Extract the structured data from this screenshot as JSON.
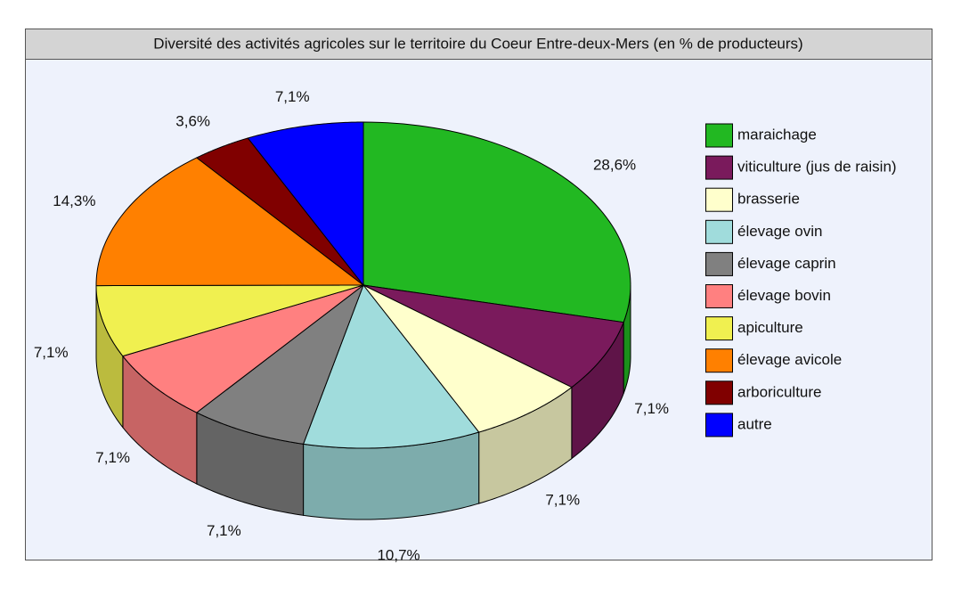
{
  "chart_data": {
    "type": "pie3d",
    "title": "Diversité des activités agricoles sur le territoire du Coeur Entre-deux-Mers (en % de producteurs)",
    "categories": [
      "maraichage",
      "viticulture (jus de raisin)",
      "brasserie",
      "élevage ovin",
      "élevage caprin",
      "élevage bovin",
      "apiculture",
      "élevage avicole",
      "arboriculture",
      "autre"
    ],
    "values": [
      28.6,
      7.1,
      7.1,
      10.7,
      7.1,
      7.1,
      7.1,
      14.3,
      3.6,
      7.1
    ],
    "value_labels": [
      "28,6%",
      "7,1%",
      "7,1%",
      "10,7%",
      "7,1%",
      "7,1%",
      "7,1%",
      "14,3%",
      "3,6%",
      "7,1%"
    ],
    "colors": [
      "#22b822",
      "#7a1a5c",
      "#ffffcc",
      "#a0dcdc",
      "#808080",
      "#ff8080",
      "#f0f050",
      "#ff8000",
      "#800000",
      "#0000ff"
    ],
    "legend": "right"
  }
}
